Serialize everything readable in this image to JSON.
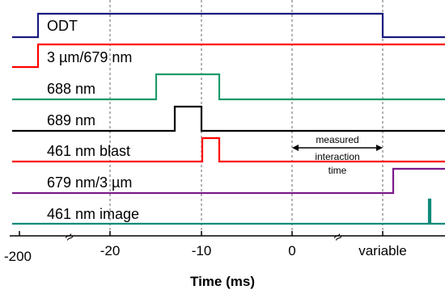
{
  "channels": [
    {
      "id": "odt",
      "label": "ODT",
      "color": "#1a1a80"
    },
    {
      "id": "um3_679",
      "label": "3 µm/679 nm",
      "color": "#ff0000"
    },
    {
      "id": "nm688",
      "label": "688 nm",
      "color": "#1f9a6a"
    },
    {
      "id": "nm689",
      "label": "689 nm",
      "color": "#000000"
    },
    {
      "id": "blast461",
      "label": "461 nm blast",
      "color": "#ff0000"
    },
    {
      "id": "nm679_3um",
      "label": "679 nm/3 µm",
      "color": "#7a1a8a"
    },
    {
      "id": "image461",
      "label": "461 nm image",
      "color": "#0a8a7a"
    }
  ],
  "axis": {
    "title": "Time (ms)",
    "ticks": [
      "-200",
      "-20",
      "-10",
      "0",
      "variable"
    ],
    "break_symbol": "≈"
  },
  "annotation": {
    "line1": "measured",
    "line2": "interaction",
    "line3": "time"
  }
}
